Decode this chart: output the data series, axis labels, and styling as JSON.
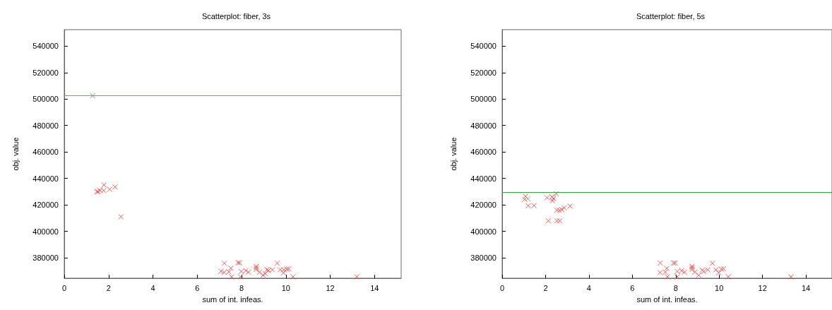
{
  "chart_data": [
    {
      "type": "scatter",
      "title": "Scatterplot: fiber, 3s",
      "xlabel": "sum of int. infeas.",
      "ylabel": "obj. value",
      "xlim": [
        0,
        15.2
      ],
      "xticks": [
        0,
        2,
        4,
        6,
        8,
        10,
        12,
        14
      ],
      "ylim": [
        364500,
        552500
      ],
      "yticks": [
        380000,
        400000,
        420000,
        440000,
        460000,
        480000,
        500000,
        520000,
        540000
      ],
      "grid": false,
      "marker": "cross",
      "ref_lines": [
        {
          "axis": "y",
          "value": 502500,
          "color": "#33cc33"
        }
      ],
      "series": [
        {
          "color": "#ff3030",
          "x": [
            1.47,
            1.52,
            1.62,
            1.78,
            1.79,
            2.05,
            2.29,
            2.56,
            7.22,
            7.07,
            7.21,
            7.43,
            7.51,
            7.55,
            7.84,
            7.91,
            7.95,
            7.99,
            8.19,
            8.31,
            8.66,
            8.66,
            8.66,
            8.81,
            8.97,
            9.07,
            9.14,
            9.21,
            9.39,
            9.61,
            9.74,
            9.89,
            9.9,
            10.04,
            10.13,
            10.32,
            13.2
          ],
          "values": [
            430000,
            430000,
            430900,
            430900,
            435000,
            431700,
            433500,
            411000,
            375800,
            369800,
            369000,
            369300,
            372100,
            365600,
            376200,
            376200,
            365600,
            369600,
            370200,
            369100,
            373500,
            372500,
            371100,
            369100,
            366800,
            368000,
            370900,
            370400,
            370900,
            375800,
            370900,
            368600,
            370900,
            371400,
            371600,
            365600,
            365600
          ]
        },
        {
          "color": "#22bb22",
          "x": [
            1.28
          ],
          "values": [
            502500
          ]
        }
      ]
    },
    {
      "type": "scatter",
      "title": "Scatterplot: fiber, 5s",
      "xlabel": "sum of int. infeas.",
      "ylabel": "obj. value",
      "xlim": [
        0,
        15.2
      ],
      "xticks": [
        0,
        2,
        4,
        6,
        8,
        10,
        12,
        14
      ],
      "ylim": [
        364500,
        552500
      ],
      "yticks": [
        380000,
        400000,
        420000,
        440000,
        460000,
        480000,
        500000,
        520000,
        540000
      ],
      "grid": false,
      "marker": "cross",
      "ref_lines": [
        {
          "axis": "y",
          "value": 429300,
          "color": "#33aa33"
        }
      ],
      "series": [
        {
          "color": "#ff3030",
          "x": [
            1.08,
            1.04,
            1.2,
            1.47,
            2.07,
            2.3,
            2.37,
            2.32,
            2.49,
            2.52,
            2.64,
            2.75,
            2.86,
            3.13,
            2.13,
            2.52,
            2.65,
            7.29,
            7.28,
            7.52,
            7.59,
            7.62,
            7.9,
            7.97,
            8.07,
            8.07,
            8.27,
            8.4,
            8.75,
            8.75,
            8.75,
            8.88,
            9.06,
            9.22,
            9.29,
            9.48,
            9.69,
            9.85,
            9.98,
            10.1,
            10.2,
            10.42,
            13.31
          ],
          "values": [
            426400,
            424200,
            419300,
            419500,
            425400,
            426100,
            424700,
            423100,
            428400,
            415900,
            415900,
            416400,
            417700,
            419100,
            407900,
            407900,
            407900,
            376000,
            368800,
            369100,
            372000,
            365600,
            376000,
            376000,
            369600,
            365600,
            370200,
            369100,
            373500,
            372500,
            371100,
            369100,
            366800,
            370700,
            369600,
            370900,
            375800,
            370900,
            368600,
            371400,
            371600,
            365600,
            365600
          ]
        },
        {
          "color": "#33cc33",
          "x": [
            1.18
          ],
          "values": [
            424600
          ]
        }
      ]
    }
  ]
}
